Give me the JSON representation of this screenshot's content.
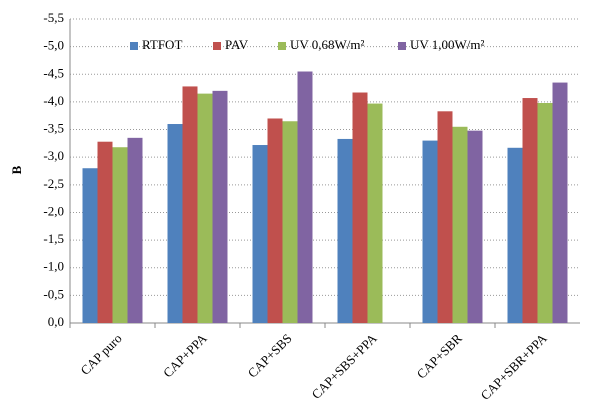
{
  "chart_data": {
    "type": "bar",
    "y_label": "B",
    "categories": [
      "CAP puro",
      "CAP+PPA",
      "CAP+SBS",
      "CAP+SBS+PPA",
      "CAP+SBR",
      "CAP+SBR+PPA"
    ],
    "series": [
      {
        "name": "RTFOT",
        "color": "#4f81bd",
        "values": [
          -2.8,
          -3.6,
          -3.22,
          -3.33,
          -3.3,
          -3.17
        ]
      },
      {
        "name": "PAV",
        "color": "#c0504d",
        "values": [
          -3.28,
          -4.28,
          -3.7,
          -4.17,
          -3.83,
          -4.07
        ]
      },
      {
        "name": "UV 0,68W/m²",
        "color": "#9bbb59",
        "values": [
          -3.18,
          -4.15,
          -3.65,
          -3.97,
          -3.55,
          -3.98
        ]
      },
      {
        "name": "UV 1,00W/m²",
        "color": "#8064a2",
        "values": [
          -3.35,
          -4.2,
          -4.55,
          null,
          -3.48,
          -4.35
        ]
      }
    ],
    "ylim": [
      0,
      -5.5
    ],
    "yticks": [
      {
        "value": 0,
        "label": "0,0"
      },
      {
        "value": -0.5,
        "label": "-0,5"
      },
      {
        "value": -1,
        "label": "-1,0"
      },
      {
        "value": -1.5,
        "label": "-1,5"
      },
      {
        "value": -2,
        "label": "-2,0"
      },
      {
        "value": -2.5,
        "label": "-2,5"
      },
      {
        "value": -3,
        "label": "-3,0"
      },
      {
        "value": -3.5,
        "label": "-3,5"
      },
      {
        "value": -4,
        "label": "-4,0"
      },
      {
        "value": -4.5,
        "label": "-4,5"
      },
      {
        "value": -5,
        "label": "-5,0"
      },
      {
        "value": -5.5,
        "label": "-5,5"
      }
    ],
    "grid": true,
    "legend": "top"
  }
}
